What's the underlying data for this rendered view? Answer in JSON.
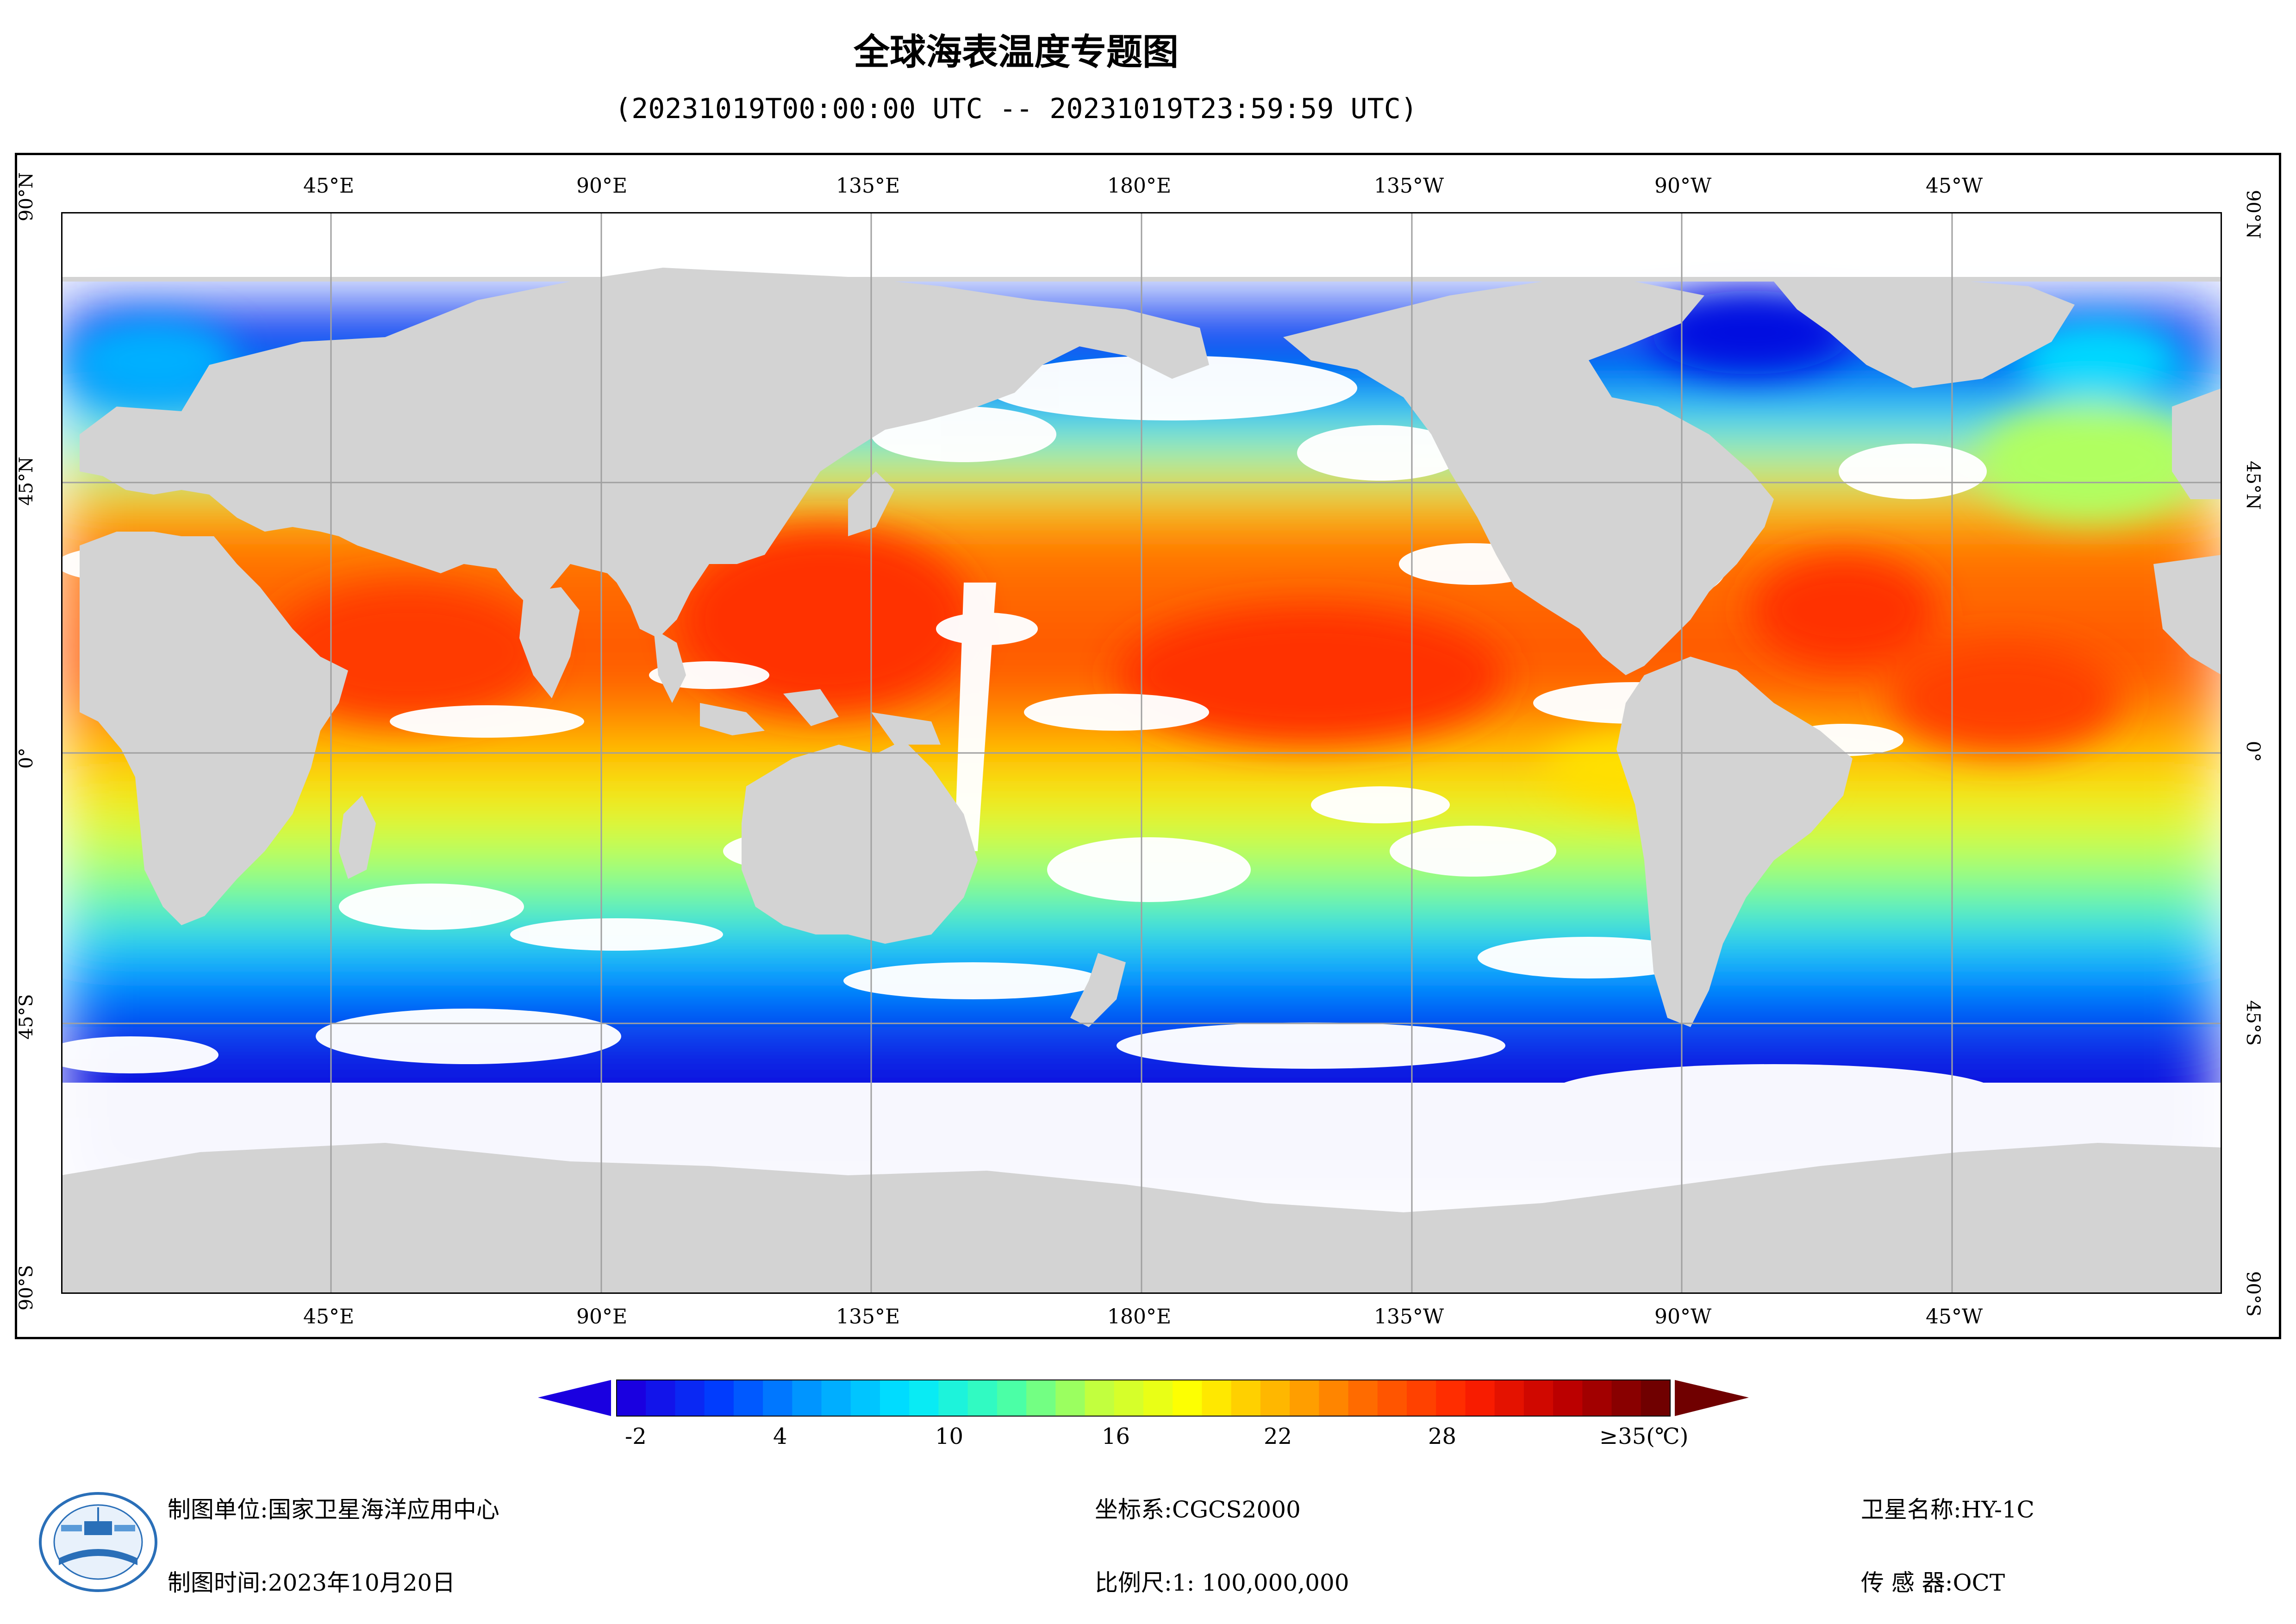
{
  "header": {
    "title": "全球海表温度专题图",
    "time_range": "(20231019T00:00:00 UTC -- 20231019T23:59:59 UTC)"
  },
  "map": {
    "top_lon_labels": [
      "45°E",
      "90°E",
      "135°E",
      "180°E",
      "135°W",
      "90°W",
      "45°W"
    ],
    "bottom_lon_labels": [
      "45°E",
      "90°E",
      "135°E",
      "180°E",
      "135°W",
      "90°W",
      "45°W"
    ],
    "left_lat_labels": [
      "90°N",
      "45°N",
      "0°",
      "45°S",
      "90°S"
    ],
    "right_lat_labels": [
      "90°N",
      "45°N",
      "0°",
      "45°S",
      "90°S"
    ],
    "colors": {
      "land": "#d3d3d3",
      "cloud_nodata": "#ffffff",
      "grid": "#a0a0a0"
    }
  },
  "colorbar": {
    "tick_labels": [
      "-2",
      "4",
      "10",
      "16",
      "22",
      "28",
      "≥35(℃)"
    ],
    "tick_values": [
      -2,
      4,
      10,
      16,
      22,
      28,
      35
    ],
    "range": [
      -2,
      35
    ],
    "colors": [
      "#1a00e0",
      "#0040ff",
      "#00a0ff",
      "#00e8ff",
      "#40ffb0",
      "#c0ff40",
      "#ffff00",
      "#ffb000",
      "#ff6000",
      "#ff2000",
      "#c00000",
      "#700000"
    ]
  },
  "footer": {
    "org_label": "制图单位:",
    "org_value": "国家卫星海洋应用中心",
    "date_label": "制图时间:",
    "date_value": "2023年10月20日",
    "crs_label": "坐标系:",
    "crs_value": "CGCS2000",
    "scale_label": "比例尺:",
    "scale_value": "1: 100,000,000",
    "satellite_label": "卫星名称:",
    "satellite_value": "HY-1C",
    "sensor_label": "传 感 器:",
    "sensor_value": "OCT"
  }
}
